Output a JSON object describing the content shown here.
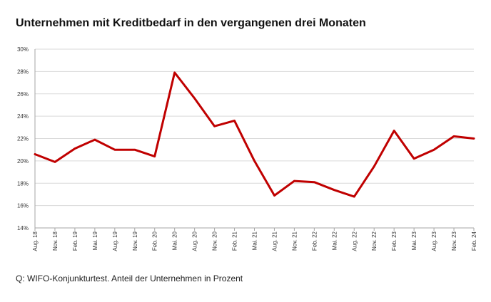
{
  "title": "Unternehmen mit Kreditbedarf  in den vergangenen drei Monaten",
  "source": "Q:  WIFO-Konjunkturtest. Anteil der Unternehmen  in Prozent",
  "colors": {
    "line": "#c00000",
    "grid": "#d9d9d9",
    "axis": "#a6a6a6"
  },
  "chart_data": {
    "type": "line",
    "title": "Unternehmen mit Kreditbedarf  in den vergangenen drei Monaten",
    "xlabel": "",
    "ylabel": "",
    "ylim": [
      14,
      30
    ],
    "yticks": [
      14,
      16,
      18,
      20,
      22,
      24,
      26,
      28,
      30
    ],
    "ytick_labels": [
      "14%",
      "16%",
      "18%",
      "20%",
      "22%",
      "24%",
      "26%",
      "28%",
      "30%"
    ],
    "grid": "horizontal",
    "legend": "none",
    "categories": [
      "Aug. 18",
      "Nov. 18",
      "Feb. 19",
      "Mai. 19",
      "Aug. 19",
      "Nov. 19",
      "Feb. 20",
      "Mai. 20",
      "Aug. 20",
      "Nov. 20",
      "Feb. 21",
      "Mai. 21",
      "Aug. 21",
      "Nov. 21",
      "Feb. 22",
      "Mai. 22",
      "Aug. 22",
      "Nov. 22",
      "Feb. 23",
      "Mai. 23",
      "Aug. 23",
      "Nov. 23",
      "Feb. 24"
    ],
    "series": [
      {
        "values": [
          20.6,
          19.9,
          21.1,
          21.9,
          21.0,
          21.0,
          20.4,
          27.9,
          25.6,
          23.1,
          23.6,
          20.0,
          16.9,
          18.2,
          18.1,
          17.4,
          16.8,
          19.5,
          22.7,
          20.2,
          21.0,
          22.2,
          22.0
        ]
      }
    ]
  }
}
